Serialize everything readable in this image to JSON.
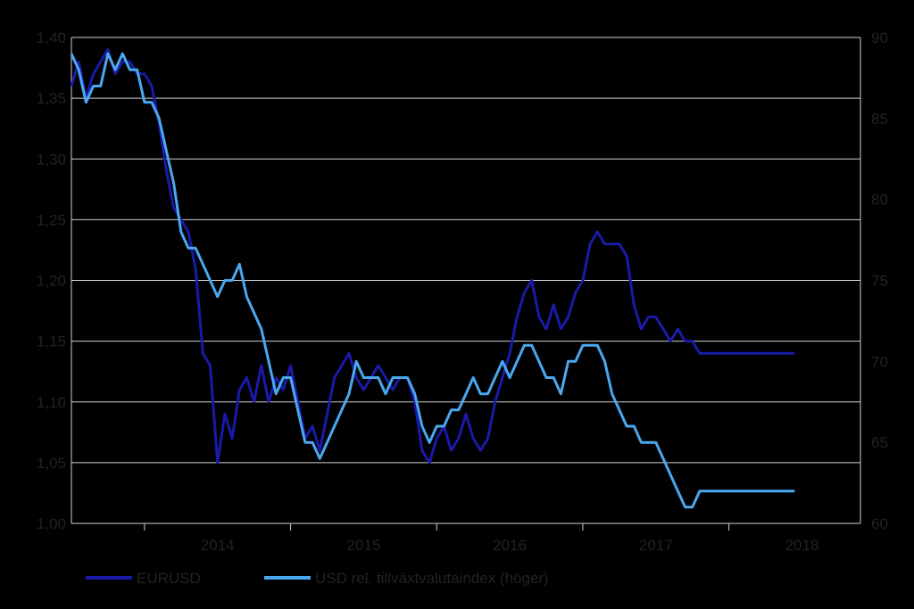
{
  "chart_data": {
    "type": "line",
    "title": "",
    "colors": {
      "background": "#000000",
      "grid": "#d0d0d0",
      "axis_text": "#222222",
      "eurusd": "#1a1aa8",
      "usd_index": "#4aa8f0"
    },
    "x_axis": {
      "labels": [
        "2014",
        "2015",
        "2016",
        "2017",
        "2018"
      ],
      "range": [
        2013.5,
        2018.9
      ]
    },
    "y_left": {
      "ticks": [
        "1,00",
        "1,05",
        "1,10",
        "1,15",
        "1,20",
        "1,25",
        "1,30",
        "1,35",
        "1,40"
      ],
      "range": [
        1.0,
        1.4
      ]
    },
    "y_right": {
      "ticks": [
        "60",
        "65",
        "70",
        "75",
        "80",
        "85",
        "90"
      ],
      "range": [
        60,
        90
      ]
    },
    "grid": true,
    "legend_position": "bottom",
    "series": [
      {
        "name": "EURUSD",
        "axis": "left",
        "color": "#1a1aa8",
        "x": [
          2013.5,
          2013.55,
          2013.6,
          2013.65,
          2013.7,
          2013.75,
          2013.8,
          2013.85,
          2013.9,
          2013.95,
          2014.0,
          2014.05,
          2014.1,
          2014.15,
          2014.2,
          2014.25,
          2014.3,
          2014.35,
          2014.4,
          2014.45,
          2014.5,
          2014.55,
          2014.6,
          2014.65,
          2014.7,
          2014.75,
          2014.8,
          2014.85,
          2014.9,
          2014.95,
          2015.0,
          2015.05,
          2015.1,
          2015.15,
          2015.2,
          2015.25,
          2015.3,
          2015.35,
          2015.4,
          2015.45,
          2015.5,
          2015.55,
          2015.6,
          2015.65,
          2015.7,
          2015.75,
          2015.8,
          2015.85,
          2015.9,
          2015.95,
          2016.0,
          2016.05,
          2016.1,
          2016.15,
          2016.2,
          2016.25,
          2016.3,
          2016.35,
          2016.4,
          2016.45,
          2016.5,
          2016.55,
          2016.6,
          2016.65,
          2016.7,
          2016.75,
          2016.8,
          2016.85,
          2016.9,
          2016.95,
          2017.0,
          2017.05,
          2017.1,
          2017.15,
          2017.2,
          2017.25,
          2017.3,
          2017.35,
          2017.4,
          2017.45,
          2017.5,
          2017.55,
          2017.6,
          2017.65,
          2017.7,
          2017.75,
          2017.8,
          2017.85,
          2017.9,
          2017.95,
          2018.0,
          2018.05,
          2018.1,
          2018.15,
          2018.2,
          2018.25,
          2018.3,
          2018.35,
          2018.4,
          2018.45
        ],
        "values": [
          1.36,
          1.38,
          1.35,
          1.37,
          1.38,
          1.39,
          1.37,
          1.38,
          1.38,
          1.37,
          1.37,
          1.36,
          1.33,
          1.29,
          1.26,
          1.25,
          1.24,
          1.21,
          1.14,
          1.13,
          1.05,
          1.09,
          1.07,
          1.11,
          1.12,
          1.1,
          1.13,
          1.1,
          1.12,
          1.11,
          1.13,
          1.1,
          1.07,
          1.08,
          1.06,
          1.09,
          1.12,
          1.13,
          1.14,
          1.12,
          1.11,
          1.12,
          1.13,
          1.12,
          1.11,
          1.12,
          1.12,
          1.1,
          1.06,
          1.05,
          1.07,
          1.08,
          1.06,
          1.07,
          1.09,
          1.07,
          1.06,
          1.07,
          1.1,
          1.12,
          1.14,
          1.17,
          1.19,
          1.2,
          1.17,
          1.16,
          1.18,
          1.16,
          1.17,
          1.19,
          1.2,
          1.23,
          1.24,
          1.23,
          1.23,
          1.23,
          1.22,
          1.18,
          1.16,
          1.17,
          1.17,
          1.16,
          1.15,
          1.16,
          1.15,
          1.15,
          1.14,
          1.14,
          1.14,
          1.14,
          1.14,
          1.14,
          1.14,
          1.14,
          1.14,
          1.14,
          1.14,
          1.14,
          1.14,
          1.14
        ]
      },
      {
        "name": "USD rel. tillväxtvalutaindex (höger)",
        "axis": "right",
        "color": "#4aa8f0",
        "x": [
          2013.5,
          2013.55,
          2013.6,
          2013.65,
          2013.7,
          2013.75,
          2013.8,
          2013.85,
          2013.9,
          2013.95,
          2014.0,
          2014.05,
          2014.1,
          2014.15,
          2014.2,
          2014.25,
          2014.3,
          2014.35,
          2014.4,
          2014.45,
          2014.5,
          2014.55,
          2014.6,
          2014.65,
          2014.7,
          2014.75,
          2014.8,
          2014.85,
          2014.9,
          2014.95,
          2015.0,
          2015.05,
          2015.1,
          2015.15,
          2015.2,
          2015.25,
          2015.3,
          2015.35,
          2015.4,
          2015.45,
          2015.5,
          2015.55,
          2015.6,
          2015.65,
          2015.7,
          2015.75,
          2015.8,
          2015.85,
          2015.9,
          2015.95,
          2016.0,
          2016.05,
          2016.1,
          2016.15,
          2016.2,
          2016.25,
          2016.3,
          2016.35,
          2016.4,
          2016.45,
          2016.5,
          2016.55,
          2016.6,
          2016.65,
          2016.7,
          2016.75,
          2016.8,
          2016.85,
          2016.9,
          2016.95,
          2017.0,
          2017.05,
          2017.1,
          2017.15,
          2017.2,
          2017.25,
          2017.3,
          2017.35,
          2017.4,
          2017.45,
          2017.5,
          2017.55,
          2017.6,
          2017.65,
          2017.7,
          2017.75,
          2017.8,
          2017.85,
          2017.9,
          2017.95,
          2018.0,
          2018.05,
          2018.1,
          2018.15,
          2018.2,
          2018.25,
          2018.3,
          2018.35,
          2018.4,
          2018.45
        ],
        "values": [
          89,
          88,
          86,
          87,
          87,
          89,
          88,
          89,
          88,
          88,
          86,
          86,
          85,
          83,
          81,
          78,
          77,
          77,
          76,
          75,
          74,
          75,
          75,
          76,
          74,
          73,
          72,
          70,
          68,
          69,
          69,
          67,
          65,
          65,
          64,
          65,
          66,
          67,
          68,
          70,
          69,
          69,
          69,
          68,
          69,
          69,
          69,
          68,
          66,
          65,
          66,
          66,
          67,
          67,
          68,
          69,
          68,
          68,
          69,
          70,
          69,
          70,
          71,
          71,
          70,
          69,
          69,
          68,
          70,
          70,
          71,
          71,
          71,
          70,
          68,
          67,
          66,
          66,
          65,
          65,
          65,
          64,
          63,
          62,
          61,
          61,
          62,
          62,
          62,
          62,
          62,
          62,
          62,
          62,
          62,
          62,
          62,
          62,
          62,
          62
        ]
      }
    ]
  }
}
